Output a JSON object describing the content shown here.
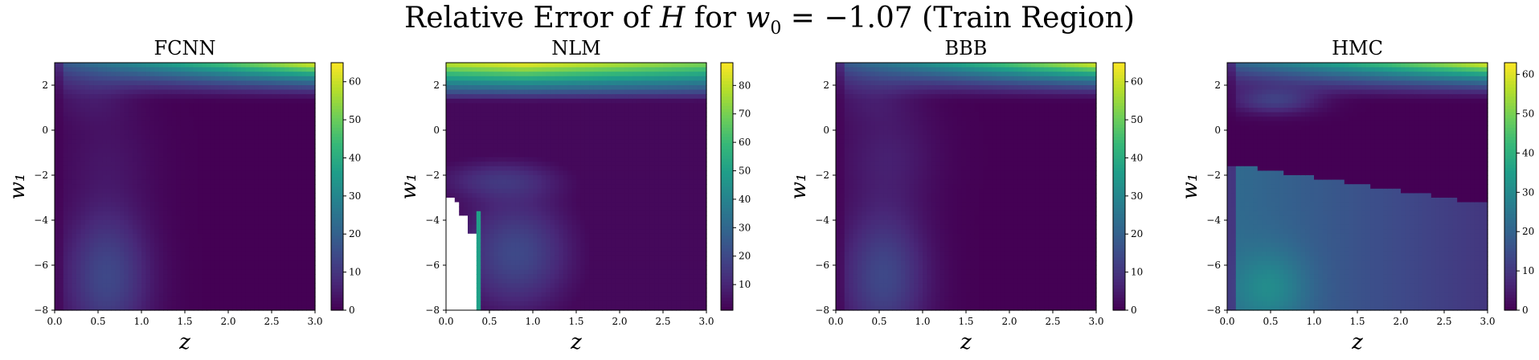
{
  "figure": {
    "title_prefix": "Relative Error of ",
    "title_var_H": "H",
    "title_mid": " for ",
    "title_var_w0": "w",
    "title_sub_0": "0",
    "title_suffix": " = −1.07 (Train Region)"
  },
  "chart_data": [
    {
      "type": "heatmap",
      "title": "FCNN",
      "xlabel": "z",
      "ylabel": "w₁",
      "xlim": [
        0.0,
        3.0
      ],
      "ylim": [
        -8,
        3
      ],
      "xticks": [
        "0.0",
        "0.5",
        "1.0",
        "1.5",
        "2.0",
        "2.5",
        "3.0"
      ],
      "yticks": [
        "2",
        "0",
        "−2",
        "−4",
        "−6",
        "−8"
      ],
      "colorbar": {
        "min": 0,
        "max": 65,
        "ticks": [
          "0",
          "10",
          "20",
          "30",
          "40",
          "50",
          "60"
        ],
        "colormap": "viridis"
      },
      "features": {
        "top_max": 65,
        "blob_value": 14,
        "blob_center_z": 0.6,
        "arc_value": 4
      }
    },
    {
      "type": "heatmap",
      "title": "NLM",
      "xlabel": "z",
      "ylabel": "w₁",
      "xlim": [
        0.0,
        3.0
      ],
      "ylim": [
        -8,
        3
      ],
      "xticks": [
        "0.0",
        "0.5",
        "1.0",
        "1.5",
        "2.0",
        "2.5",
        "3.0"
      ],
      "yticks": [
        "2",
        "0",
        "−2",
        "−4",
        "−6",
        "−8"
      ],
      "colorbar": {
        "min": 1,
        "max": 88,
        "ticks": [
          "10",
          "20",
          "30",
          "40",
          "50",
          "60",
          "70",
          "80"
        ],
        "colormap": "viridis"
      },
      "features": {
        "top_max": 88,
        "blob_value": 20,
        "blob_center_z": 0.8,
        "white_region": "missing values near z<0.4, w1<-3",
        "edge_value": 50
      }
    },
    {
      "type": "heatmap",
      "title": "BBB",
      "xlabel": "z",
      "ylabel": "w₁",
      "xlim": [
        0.0,
        3.0
      ],
      "ylim": [
        -8,
        3
      ],
      "xticks": [
        "0.0",
        "0.5",
        "1.0",
        "1.5",
        "2.0",
        "2.5",
        "3.0"
      ],
      "yticks": [
        "2",
        "0",
        "−2",
        "−4",
        "−6",
        "−8"
      ],
      "colorbar": {
        "min": 0,
        "max": 65,
        "ticks": [
          "0",
          "10",
          "20",
          "30",
          "40",
          "50",
          "60"
        ],
        "colormap": "viridis"
      },
      "features": {
        "top_max": 65,
        "blob_value": 14,
        "blob_center_z": 0.55,
        "arc_value": 4
      }
    },
    {
      "type": "heatmap",
      "title": "HMC",
      "xlabel": "z",
      "ylabel": "w₁",
      "xlim": [
        0.0,
        3.0
      ],
      "ylim": [
        -8,
        3
      ],
      "xticks": [
        "0.0",
        "0.5",
        "1.0",
        "1.5",
        "2.0",
        "2.5",
        "3.0"
      ],
      "yticks": [
        "2",
        "0",
        "−2",
        "−4",
        "−6",
        "−8"
      ],
      "colorbar": {
        "min": 0,
        "max": 63,
        "ticks": [
          "0",
          "10",
          "20",
          "30",
          "40",
          "50",
          "60"
        ],
        "colormap": "viridis"
      },
      "features": {
        "top_max": 63,
        "blob_value": 30,
        "blob_center_z": 0.5,
        "band_value": 22
      }
    }
  ]
}
